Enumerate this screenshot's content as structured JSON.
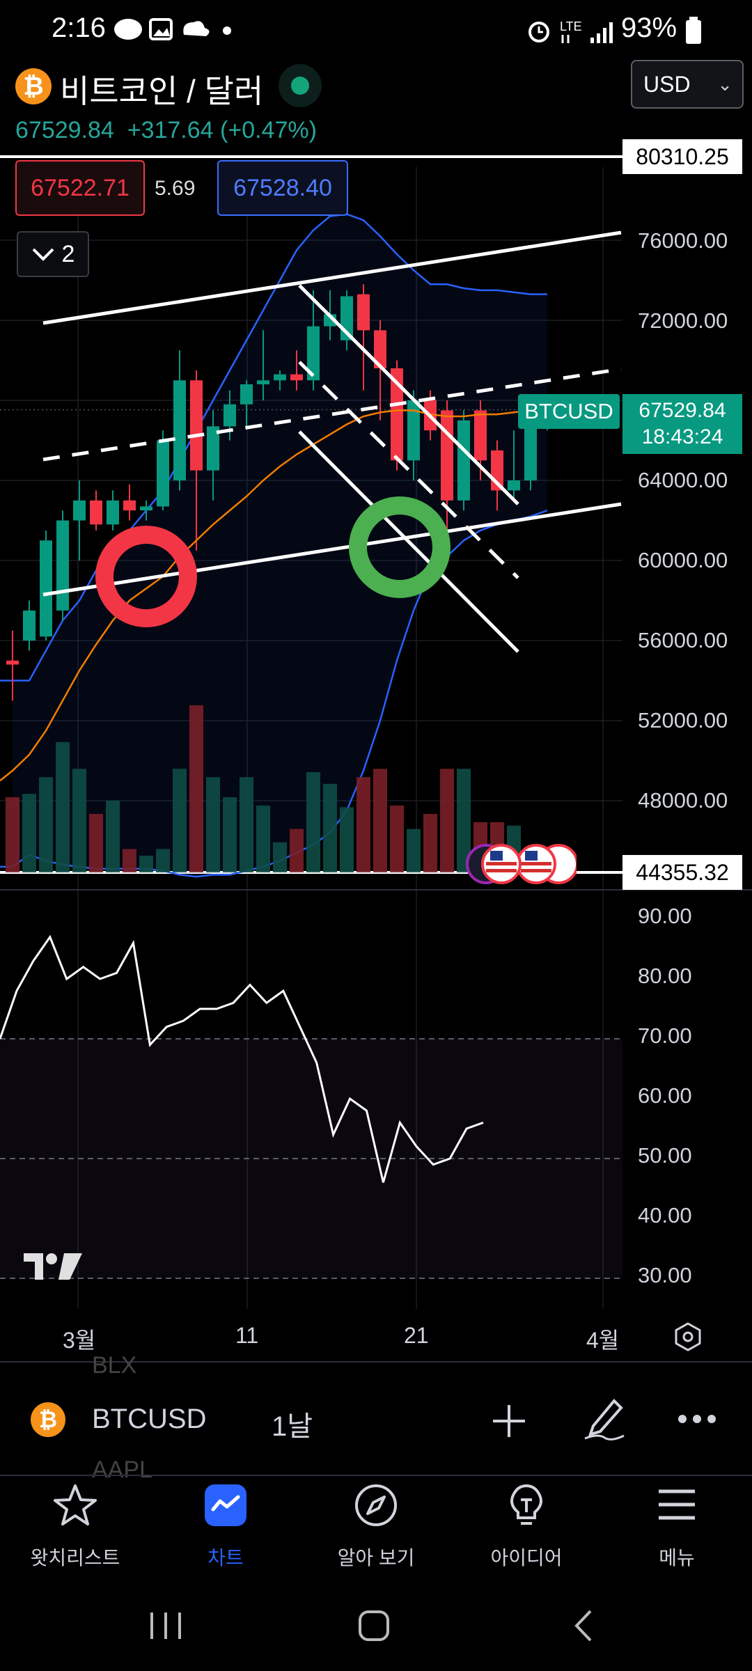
{
  "status_bar": {
    "time": "2:16",
    "battery": "93%"
  },
  "header": {
    "symbol_icon": "₿",
    "title": "비트코인 / 달러",
    "currency": "USD",
    "last_price": "67529.84",
    "change": "+317.64 (+0.47%)"
  },
  "quote": {
    "bid": "67522.71",
    "spread": "5.69",
    "ask": "67528.40"
  },
  "indicator_toggle": {
    "count": "2"
  },
  "price_axis": {
    "labels": [
      "76000.00",
      "72000.00",
      "64000.00",
      "60000.00",
      "56000.00",
      "52000.00",
      "48000.00"
    ],
    "top_line": "80310.25",
    "bottom_line": "44355.32",
    "symbol_tag": "BTCUSD",
    "current_price": "67529.84",
    "countdown": "18:43:24"
  },
  "rsi_axis": {
    "labels": [
      "90.00",
      "80.00",
      "70.00",
      "60.00",
      "50.00",
      "40.00",
      "30.00"
    ]
  },
  "time_axis": {
    "labels": [
      "3월",
      "11",
      "21",
      "4월"
    ]
  },
  "chart_data": {
    "type": "candlestick",
    "interval": "1날",
    "ylim": [
      42000,
      82000
    ],
    "candles": [
      {
        "o": 55000,
        "h": 56500,
        "l": 53000,
        "c": 54800
      },
      {
        "o": 56000,
        "h": 58000,
        "l": 55500,
        "c": 57500
      },
      {
        "o": 56200,
        "h": 61500,
        "l": 56000,
        "c": 61000
      },
      {
        "o": 57500,
        "h": 62500,
        "l": 57000,
        "c": 62000
      },
      {
        "o": 62000,
        "h": 64000,
        "l": 60000,
        "c": 63000
      },
      {
        "o": 63000,
        "h": 63500,
        "l": 61500,
        "c": 61800
      },
      {
        "o": 61800,
        "h": 63500,
        "l": 61500,
        "c": 63000
      },
      {
        "o": 63000,
        "h": 63800,
        "l": 62000,
        "c": 62500
      },
      {
        "o": 62500,
        "h": 63000,
        "l": 62000,
        "c": 62700
      },
      {
        "o": 62700,
        "h": 66500,
        "l": 62500,
        "c": 66000
      },
      {
        "o": 64000,
        "h": 70500,
        "l": 63500,
        "c": 69000
      },
      {
        "o": 69000,
        "h": 69500,
        "l": 60500,
        "c": 64500
      },
      {
        "o": 64500,
        "h": 67500,
        "l": 63000,
        "c": 66700
      },
      {
        "o": 66700,
        "h": 68500,
        "l": 66000,
        "c": 67800
      },
      {
        "o": 67800,
        "h": 69000,
        "l": 66700,
        "c": 68800
      },
      {
        "o": 68800,
        "h": 71500,
        "l": 68000,
        "c": 69000
      },
      {
        "o": 69000,
        "h": 69500,
        "l": 68500,
        "c": 69300
      },
      {
        "o": 69300,
        "h": 70500,
        "l": 68500,
        "c": 69000
      },
      {
        "o": 69000,
        "h": 73500,
        "l": 68500,
        "c": 71700
      },
      {
        "o": 71700,
        "h": 73500,
        "l": 71000,
        "c": 72300
      },
      {
        "o": 71000,
        "h": 73500,
        "l": 70500,
        "c": 73200
      },
      {
        "o": 73300,
        "h": 73800,
        "l": 68500,
        "c": 71500
      },
      {
        "o": 71500,
        "h": 72000,
        "l": 67000,
        "c": 69600
      },
      {
        "o": 69600,
        "h": 70000,
        "l": 64500,
        "c": 65000
      },
      {
        "o": 65000,
        "h": 68500,
        "l": 64000,
        "c": 68000
      },
      {
        "o": 68000,
        "h": 68500,
        "l": 66000,
        "c": 66500
      },
      {
        "o": 67500,
        "h": 68000,
        "l": 61500,
        "c": 63000
      },
      {
        "o": 63000,
        "h": 67500,
        "l": 62500,
        "c": 67000
      },
      {
        "o": 67500,
        "h": 68000,
        "l": 64000,
        "c": 65000
      },
      {
        "o": 65500,
        "h": 66000,
        "l": 62500,
        "c": 63500
      },
      {
        "o": 63500,
        "h": 66500,
        "l": 63000,
        "c": 64000
      },
      {
        "o": 64000,
        "h": 67500,
        "l": 63500,
        "c": 67200
      },
      {
        "o": 67200,
        "h": 67800,
        "l": 66500,
        "c": 67530
      }
    ],
    "volume": [
      0.45,
      0.47,
      0.57,
      0.78,
      0.62,
      0.35,
      0.43,
      0.14,
      0.1,
      0.14,
      0.62,
      1.0,
      0.57,
      0.45,
      0.57,
      0.4,
      0.18,
      0.26,
      0.6,
      0.53,
      0.39,
      0.57,
      0.62,
      0.4,
      0.26,
      0.35,
      0.62,
      0.62,
      0.3,
      0.3,
      0.28,
      0.12,
      0.1
    ]
  },
  "rsi_data": {
    "ylim": [
      28,
      94
    ],
    "upper": 70,
    "lower": 30,
    "mid": 50,
    "values": [
      70,
      78,
      83,
      87,
      80,
      82,
      80,
      81,
      86,
      69,
      72,
      73,
      75,
      75,
      76,
      79,
      76,
      78,
      72,
      66,
      54,
      60,
      58,
      46,
      56,
      52,
      49,
      50,
      55,
      56
    ]
  },
  "toolbar": {
    "symbol_icon": "₿",
    "symbol": "BTCUSD",
    "interval": "1날",
    "ghost_top": "BLX",
    "ghost_bottom": "AAPL"
  },
  "nav": {
    "items": [
      {
        "label": "왓치리스트"
      },
      {
        "label": "차트"
      },
      {
        "label": "알아 보기"
      },
      {
        "label": "아이디어"
      },
      {
        "label": "메뉴"
      }
    ]
  },
  "colors": {
    "up": "#089981",
    "down": "#f23645",
    "accent": "#2962ff",
    "bb": "#2962ff",
    "ma": "#f57c00"
  }
}
